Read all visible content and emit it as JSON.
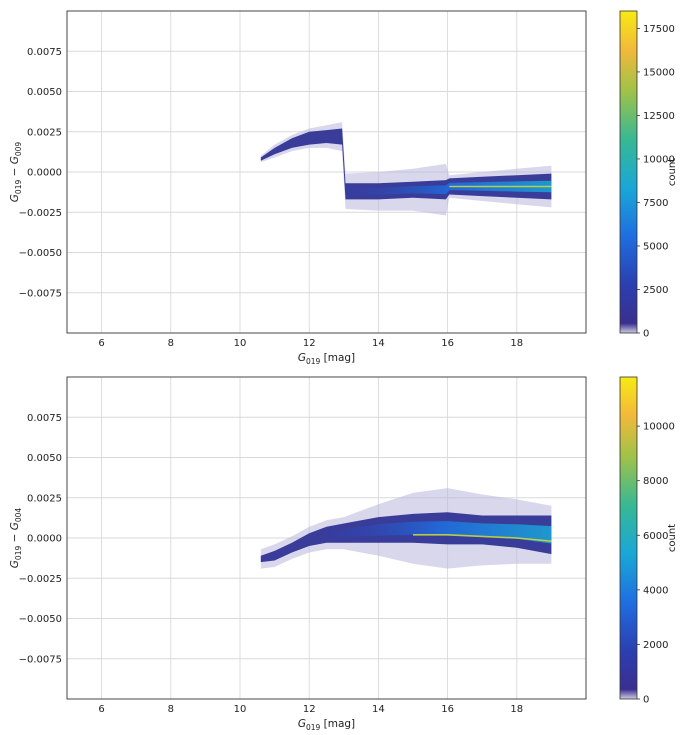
{
  "chart_data": [
    {
      "type": "heatmap",
      "title": "",
      "xlabel": {
        "main": "G",
        "sub": "019",
        "unit": " [mag]"
      },
      "ylabel": {
        "left": "G",
        "left_sub": "019",
        "op": " − ",
        "right": "G",
        "right_sub": "009"
      },
      "xlim": [
        5,
        20
      ],
      "ylim": [
        -0.01,
        0.01
      ],
      "xticks": [
        6,
        8,
        10,
        12,
        14,
        16,
        18
      ],
      "xtick_labels": [
        "6",
        "8",
        "10",
        "12",
        "14",
        "16",
        "18"
      ],
      "yticks": [
        0.0075,
        0.005,
        0.0025,
        0.0,
        -0.0025,
        -0.005,
        -0.0075
      ],
      "ytick_labels": [
        "0.0075",
        "0.0050",
        "0.0025",
        "0.0000",
        "−0.0025",
        "−0.0050",
        "−0.0075"
      ],
      "grid": true,
      "colorbar": {
        "label": "count",
        "min": 0,
        "max": 18500,
        "ticks": [
          0,
          2500,
          5000,
          7500,
          10000,
          12500,
          15000,
          17500
        ],
        "tick_labels": [
          "0",
          "2500",
          "5000",
          "7500",
          "10000",
          "12500",
          "15000",
          "17500"
        ]
      },
      "density_profile": [
        {
          "x": 10.6,
          "center": 0.0008,
          "inner_half": 0.0001,
          "outer_half": 0.0002
        },
        {
          "x": 11.0,
          "center": 0.0013,
          "inner_half": 0.0002,
          "outer_half": 0.0004
        },
        {
          "x": 11.5,
          "center": 0.0018,
          "inner_half": 0.0003,
          "outer_half": 0.0005
        },
        {
          "x": 12.0,
          "center": 0.0021,
          "inner_half": 0.0004,
          "outer_half": 0.0006
        },
        {
          "x": 12.5,
          "center": 0.0022,
          "inner_half": 0.0004,
          "outer_half": 0.0007
        },
        {
          "x": 12.95,
          "center": 0.0022,
          "inner_half": 0.0005,
          "outer_half": 0.0009
        },
        {
          "x": 13.05,
          "center": -0.0012,
          "inner_half": 0.0005,
          "outer_half": 0.0011
        },
        {
          "x": 14.0,
          "center": -0.0012,
          "inner_half": 0.0005,
          "outer_half": 0.0012
        },
        {
          "x": 15.0,
          "center": -0.0011,
          "inner_half": 0.0005,
          "outer_half": 0.0013
        },
        {
          "x": 15.95,
          "center": -0.0011,
          "inner_half": 0.0006,
          "outer_half": 0.0016
        },
        {
          "x": 16.05,
          "center": -0.0009,
          "inner_half": 0.0005,
          "outer_half": 0.0007
        },
        {
          "x": 17.0,
          "center": -0.0009,
          "inner_half": 0.0006,
          "outer_half": 0.0009
        },
        {
          "x": 18.0,
          "center": -0.0009,
          "inner_half": 0.0007,
          "outer_half": 0.0011
        },
        {
          "x": 19.0,
          "center": -0.0009,
          "inner_half": 0.0008,
          "outer_half": 0.0013
        }
      ]
    },
    {
      "type": "heatmap",
      "title": "",
      "xlabel": {
        "main": "G",
        "sub": "019",
        "unit": " [mag]"
      },
      "ylabel": {
        "left": "G",
        "left_sub": "019",
        "op": " − ",
        "right": "G",
        "right_sub": "004"
      },
      "xlim": [
        5,
        20
      ],
      "ylim": [
        -0.01,
        0.01
      ],
      "xticks": [
        6,
        8,
        10,
        12,
        14,
        16,
        18
      ],
      "xtick_labels": [
        "6",
        "8",
        "10",
        "12",
        "14",
        "16",
        "18"
      ],
      "yticks": [
        0.0075,
        0.005,
        0.0025,
        0.0,
        -0.0025,
        -0.005,
        -0.0075
      ],
      "ytick_labels": [
        "0.0075",
        "0.0050",
        "0.0025",
        "0.0000",
        "−0.0025",
        "−0.0050",
        "−0.0075"
      ],
      "grid": true,
      "colorbar": {
        "label": "count",
        "min": 0,
        "max": 11800,
        "ticks": [
          0,
          2000,
          4000,
          6000,
          8000,
          10000
        ],
        "tick_labels": [
          "0",
          "2000",
          "4000",
          "6000",
          "8000",
          "10000"
        ]
      },
      "density_profile": [
        {
          "x": 10.6,
          "center": -0.0013,
          "inner_half": 0.0002,
          "outer_half": 0.0006
        },
        {
          "x": 11.0,
          "center": -0.0011,
          "inner_half": 0.0003,
          "outer_half": 0.0007
        },
        {
          "x": 11.5,
          "center": -0.0006,
          "inner_half": 0.0003,
          "outer_half": 0.0007
        },
        {
          "x": 12.0,
          "center": -0.0001,
          "inner_half": 0.0004,
          "outer_half": 0.0008
        },
        {
          "x": 12.5,
          "center": 0.0002,
          "inner_half": 0.0005,
          "outer_half": 0.0009
        },
        {
          "x": 13.0,
          "center": 0.0003,
          "inner_half": 0.0006,
          "outer_half": 0.001
        },
        {
          "x": 14.0,
          "center": 0.0005,
          "inner_half": 0.0008,
          "outer_half": 0.0016
        },
        {
          "x": 15.0,
          "center": 0.0006,
          "inner_half": 0.0009,
          "outer_half": 0.0022
        },
        {
          "x": 16.0,
          "center": 0.0006,
          "inner_half": 0.001,
          "outer_half": 0.0025
        },
        {
          "x": 17.0,
          "center": 0.0005,
          "inner_half": 0.0009,
          "outer_half": 0.0022
        },
        {
          "x": 18.0,
          "center": 0.0004,
          "inner_half": 0.001,
          "outer_half": 0.002
        },
        {
          "x": 19.0,
          "center": 0.0002,
          "inner_half": 0.0012,
          "outer_half": 0.0018
        }
      ]
    }
  ]
}
